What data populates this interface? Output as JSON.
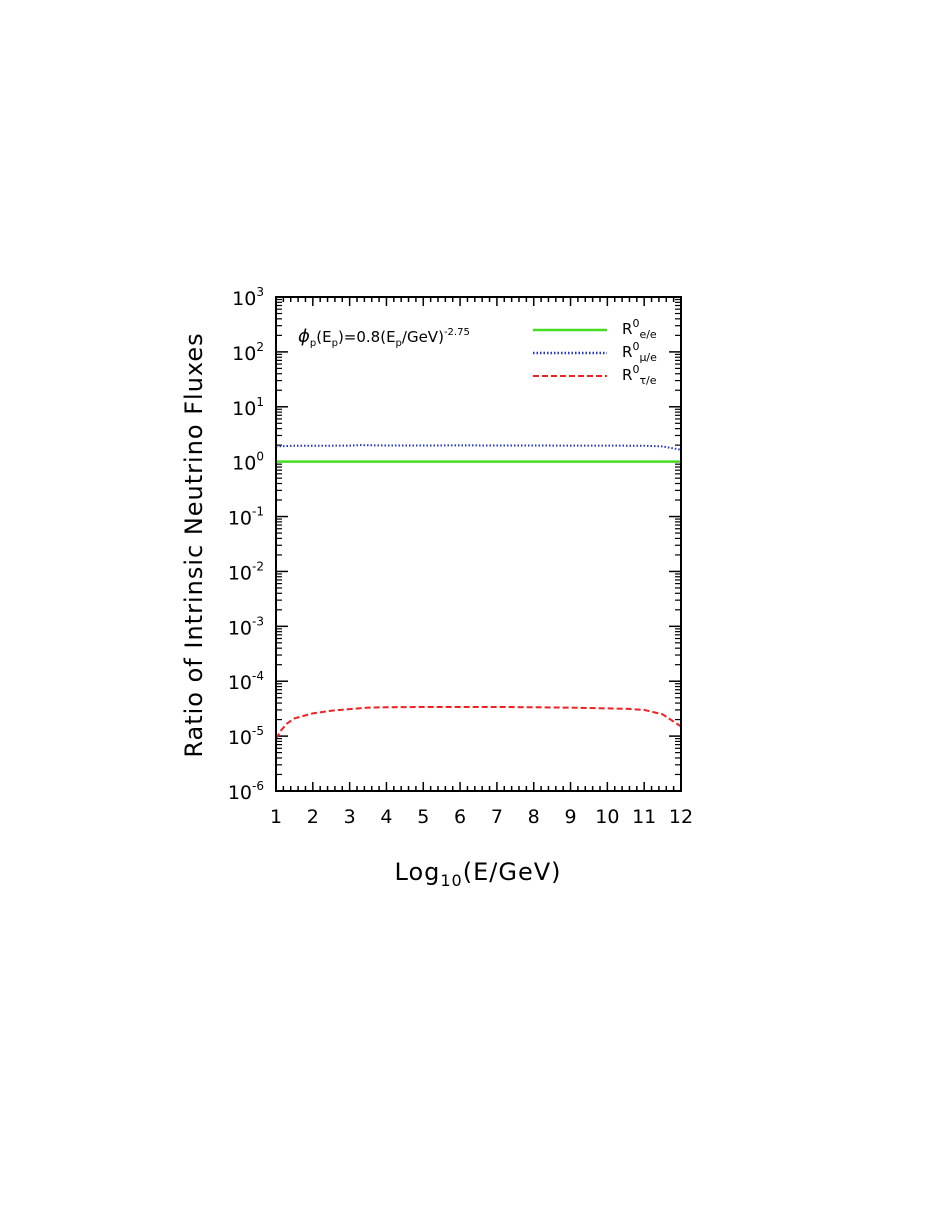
{
  "chart_data": {
    "type": "line",
    "ylabel": "Ratio of Intrinsic Neutrino Fluxes",
    "xlabel": {
      "prefix": "Log",
      "subscript": "10",
      "suffix": "(E/GeV)"
    },
    "xlim": [
      1,
      12
    ],
    "ylim_log10": [
      -6,
      3
    ],
    "yscale": "log",
    "x_ticks": [
      "1",
      "2",
      "3",
      "4",
      "5",
      "6",
      "7",
      "8",
      "9",
      "10",
      "11",
      "12"
    ],
    "y_ticks": [
      {
        "base": "10",
        "exp": "3"
      },
      {
        "base": "10",
        "exp": "2"
      },
      {
        "base": "10",
        "exp": "1"
      },
      {
        "base": "10",
        "exp": "0"
      },
      {
        "base": "10",
        "exp": "-1"
      },
      {
        "base": "10",
        "exp": "-2"
      },
      {
        "base": "10",
        "exp": "-3"
      },
      {
        "base": "10",
        "exp": "-4"
      },
      {
        "base": "10",
        "exp": "-5"
      },
      {
        "base": "10",
        "exp": "-6"
      }
    ],
    "annotation": {
      "phi": "ϕ",
      "p1": "p",
      "mid1": "(E",
      "p2": "p",
      "mid2": ")=0.8(E",
      "p3": "p",
      "mid3": "/GeV)",
      "exponent": "-2.75"
    },
    "legend_position": "top-right",
    "series": [
      {
        "name": "R⁰e/e",
        "label_main": "R",
        "label_sup": "0",
        "label_sub": "e/e",
        "color": "#44dd22",
        "style": "solid",
        "x": [
          1,
          2,
          3,
          4,
          5,
          6,
          7,
          8,
          9,
          10,
          11,
          12
        ],
        "y": [
          1,
          1,
          1,
          1,
          1,
          1,
          1,
          1,
          1,
          1,
          1,
          1
        ]
      },
      {
        "name": "R⁰μ/e",
        "label_main": "R",
        "label_sup": "0",
        "label_sub": "μ/e",
        "color": "#2233cc",
        "style": "dotted",
        "x": [
          1,
          1.5,
          2,
          3,
          3.3,
          4,
          5,
          6,
          7,
          8,
          9,
          10,
          11,
          11.5,
          12
        ],
        "y": [
          1.9,
          1.95,
          1.95,
          1.96,
          2.0,
          1.97,
          1.97,
          1.98,
          1.97,
          1.97,
          1.96,
          1.96,
          1.95,
          1.9,
          1.65
        ]
      },
      {
        "name": "R⁰τ/e",
        "label_main": "R",
        "label_sup": "0",
        "label_sub": "τ/e",
        "color": "#ee2222",
        "style": "dashed",
        "x": [
          1,
          1.15,
          1.3,
          1.5,
          2,
          2.5,
          3,
          3.5,
          4,
          5,
          6,
          7,
          8,
          9,
          10,
          10.5,
          11,
          11.5,
          12
        ],
        "y": [
          9e-06,
          1.3e-05,
          1.7e-05,
          2.1e-05,
          2.6e-05,
          2.9e-05,
          3.1e-05,
          3.3e-05,
          3.35e-05,
          3.4e-05,
          3.4e-05,
          3.4e-05,
          3.35e-05,
          3.3e-05,
          3.2e-05,
          3.15e-05,
          3e-05,
          2.5e-05,
          1.5e-05
        ]
      }
    ]
  }
}
